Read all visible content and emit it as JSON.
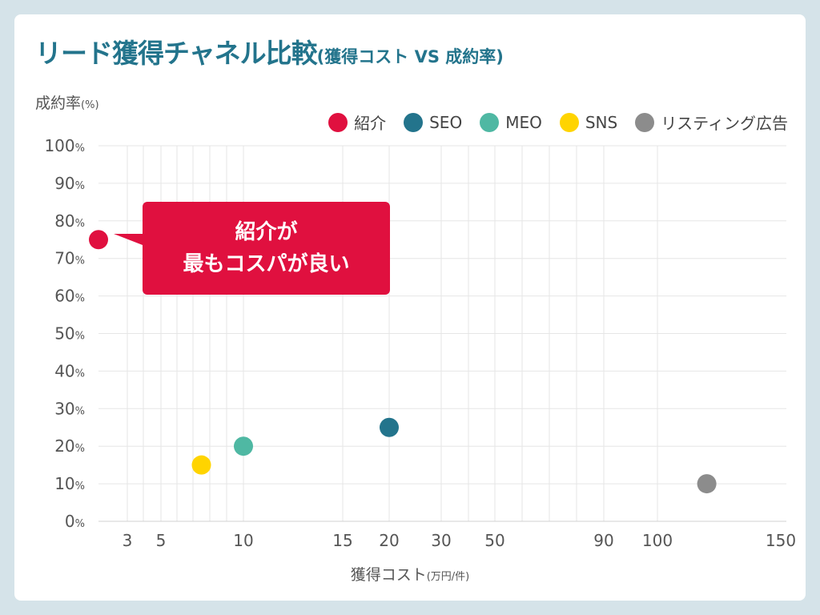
{
  "title": {
    "main": "リード獲得チャネル比較",
    "sub": "(獲得コスト VS 成約率)"
  },
  "chart_data": {
    "type": "scatter",
    "title": "リード獲得チャネル比較(獲得コスト VS 成約率)",
    "ylabel": "成約率",
    "ylabel_unit": "(%)",
    "xlabel": "獲得コスト",
    "xlabel_unit": "(万円/件)",
    "ylim": [
      0,
      100
    ],
    "yticks": [
      0,
      10,
      20,
      30,
      40,
      50,
      60,
      70,
      80,
      90,
      100
    ],
    "ytick_suffix": "%",
    "xticks": [
      3,
      5,
      10,
      15,
      20,
      30,
      50,
      90,
      100,
      150
    ],
    "xgrid": [
      3,
      4,
      5,
      6,
      7,
      8,
      9,
      10,
      15,
      20,
      30,
      40,
      50,
      60,
      70,
      80,
      90,
      100
    ],
    "x_scale": "non-uniform (compressed, log-like)",
    "grid": true,
    "legend_position": "top-right",
    "series": [
      {
        "name": "紹介",
        "color": "#e0103f",
        "x": 2,
        "y": 75
      },
      {
        "name": "SEO",
        "color": "#23748c",
        "x": 20,
        "y": 25
      },
      {
        "name": "MEO",
        "color": "#4fb8a3",
        "x": 10,
        "y": 20
      },
      {
        "name": "SNS",
        "color": "#ffd400",
        "x": 7.5,
        "y": 15
      },
      {
        "name": "リスティング広告",
        "color": "#8c8c8c",
        "x": 120,
        "y": 10
      }
    ],
    "annotation": {
      "lines": [
        "紹介が",
        "最もコスパが良い"
      ],
      "color": "#e0103f",
      "target": "紹介"
    }
  }
}
